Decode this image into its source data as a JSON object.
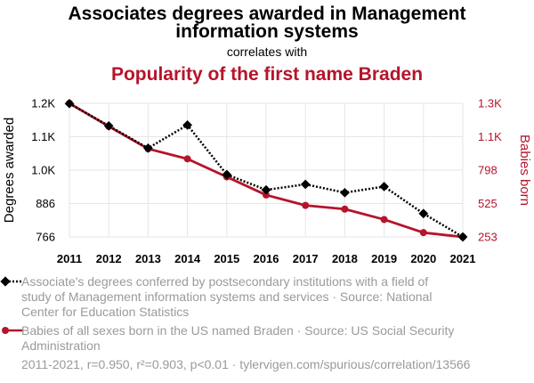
{
  "chart_data": {
    "type": "line",
    "title": "Associates degrees awarded in Management information systems",
    "title_lines": [
      "Associates degrees awarded in Management",
      "information systems"
    ],
    "subtitle": "correlates with",
    "title2": "Popularity of the first name Braden",
    "x": [
      "2011",
      "2012",
      "2013",
      "2014",
      "2015",
      "2016",
      "2017",
      "2018",
      "2019",
      "2020",
      "2021"
    ],
    "ylabel_left": "Degrees awarded",
    "ylabel_right": "Babies born",
    "yticks_left": [
      "766",
      "886",
      "1.0K",
      "1.1K",
      "1.2K"
    ],
    "yticks_right": [
      "253",
      "525",
      "798",
      "1.1K",
      "1.3K"
    ],
    "ylim_left": [
      766,
      1246
    ],
    "ylim_right": [
      253,
      1343
    ],
    "grid": true,
    "series": [
      {
        "name": "Associate's degrees conferred by postsecondary institutions with a field of study of Management information systems and services · Source: National Center for Education Statistics",
        "legend_lines": [
          "Associate's degrees conferred by postsecondary institutions with a field of",
          "study of Management information systems and services · Source: National",
          "Center for Education Statistics"
        ],
        "axis": "left",
        "color": "#000000",
        "style": "dotted",
        "marker": "diamond",
        "values": [
          1245,
          1165,
          1085,
          1168,
          990,
          935,
          955,
          925,
          947,
          850,
          766
        ]
      },
      {
        "name": "Babies of all sexes born in the US named Braden · Source: US Social Security Administration",
        "legend_lines": [
          "Babies of all sexes born in the US named Braden · Source: US Social Security",
          "Administration"
        ],
        "axis": "right",
        "color": "#b5142b",
        "style": "solid",
        "marker": "circle",
        "values": [
          1343,
          1155,
          972,
          890,
          743,
          595,
          510,
          480,
          395,
          288,
          253
        ]
      }
    ],
    "footer": "2011-2021, r=0.950, r²=0.903, p<0.01 · tylervigen.com/spurious/correlation/13566"
  }
}
